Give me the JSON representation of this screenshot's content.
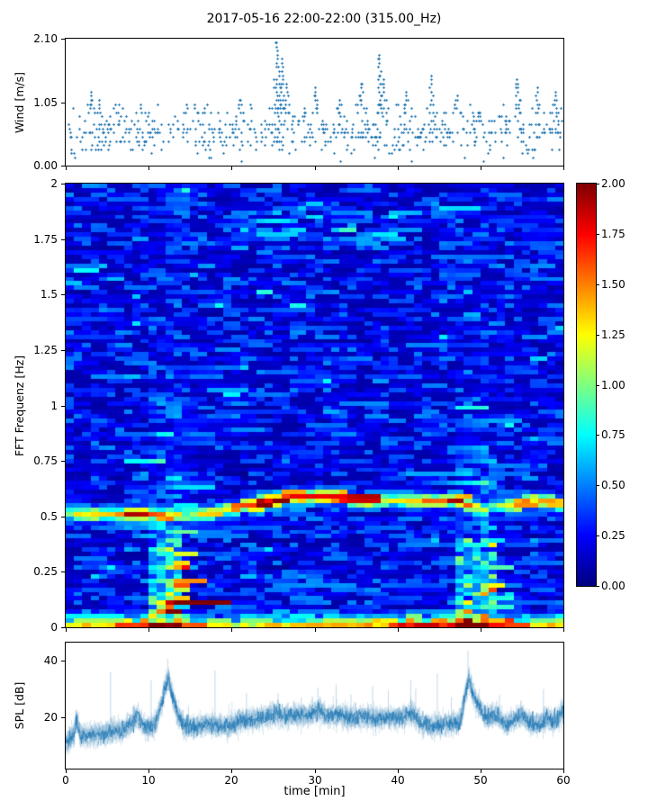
{
  "title": "2017-05-16 22:00-22:00 (315.00_Hz)",
  "chart_data": [
    {
      "type": "scatter",
      "name": "wind",
      "ylabel": "Wind [m/s]",
      "ylim": [
        0,
        2.1
      ],
      "ytick_labels": [
        "0.00",
        "1.05",
        "2.10"
      ],
      "ytick_values": [
        0,
        1.05,
        2.1
      ],
      "xlim": [
        0,
        60
      ],
      "xtick_values": [
        0,
        10,
        20,
        30,
        40,
        50,
        60
      ],
      "marker_color": "#1f77b4",
      "seed": 7,
      "n_points": 640,
      "base_mean": 0.58,
      "base_sigma": 0.17,
      "quantize_step": 0.068,
      "bursts": [
        [
          3,
          1.2
        ],
        [
          4,
          1.1
        ],
        [
          6,
          1.05
        ],
        [
          9,
          1.0
        ],
        [
          14.5,
          1.05
        ],
        [
          15.5,
          1.0
        ],
        [
          17,
          1.05
        ],
        [
          21,
          1.1
        ],
        [
          25.4,
          2.06
        ],
        [
          26,
          1.75
        ],
        [
          26.6,
          1.35
        ],
        [
          30,
          1.3
        ],
        [
          33,
          1.1
        ],
        [
          35.6,
          1.35
        ],
        [
          37.8,
          1.85
        ],
        [
          38.3,
          1.45
        ],
        [
          41,
          1.2
        ],
        [
          44,
          1.5
        ],
        [
          47.2,
          1.15
        ],
        [
          54.4,
          1.45
        ],
        [
          56.8,
          1.3
        ],
        [
          59,
          1.2
        ]
      ]
    },
    {
      "type": "heatmap",
      "name": "spectrogram",
      "ylabel": "FFT Frequenz [Hz]",
      "ylim": [
        0,
        2
      ],
      "ytick_labels": [
        "0",
        "0.25",
        "0.5",
        "0.75",
        "1",
        "1.25",
        "1.5",
        "1.75",
        "2"
      ],
      "ytick_values": [
        0,
        0.25,
        0.5,
        0.75,
        1,
        1.25,
        1.5,
        1.75,
        2
      ],
      "xlim": [
        0,
        60
      ],
      "colormap": "jet",
      "clim": [
        0,
        2
      ],
      "colorbar_tick_labels": [
        "0.00",
        "0.25",
        "0.50",
        "0.75",
        "1.00",
        "1.25",
        "1.50",
        "1.75",
        "2.00"
      ],
      "colorbar_tick_values": [
        0,
        0.25,
        0.5,
        0.75,
        1,
        1.25,
        1.5,
        1.75,
        2
      ],
      "time_bins": 60,
      "freq_bins": 100,
      "seed": 13,
      "noise_base": 0.08,
      "noise_amp": 0.45,
      "band_center": [
        [
          0,
          0.505
        ],
        [
          5,
          0.505
        ],
        [
          10,
          0.505
        ],
        [
          13,
          0.5
        ],
        [
          16,
          0.51
        ],
        [
          19,
          0.525
        ],
        [
          22,
          0.55
        ],
        [
          25,
          0.57
        ],
        [
          28,
          0.595
        ],
        [
          31,
          0.585
        ],
        [
          34,
          0.58
        ],
        [
          37,
          0.57
        ],
        [
          40,
          0.565
        ],
        [
          43,
          0.57
        ],
        [
          46,
          0.57
        ],
        [
          48,
          0.565
        ],
        [
          50,
          0.53
        ],
        [
          52,
          0.55
        ],
        [
          55,
          0.56
        ],
        [
          58,
          0.565
        ],
        [
          60,
          0.555
        ]
      ],
      "band_intensity": [
        [
          0,
          1.1
        ],
        [
          3,
          1.4
        ],
        [
          6,
          1.6
        ],
        [
          8,
          1.9
        ],
        [
          10,
          1.9
        ],
        [
          12,
          1.4
        ],
        [
          14,
          0.8
        ],
        [
          16,
          1.3
        ],
        [
          18,
          1.2
        ],
        [
          20,
          1.5
        ],
        [
          22,
          1.7
        ],
        [
          24,
          2.0
        ],
        [
          26,
          2.0
        ],
        [
          28,
          2.0
        ],
        [
          30,
          1.8
        ],
        [
          32,
          1.7
        ],
        [
          34,
          1.9
        ],
        [
          36,
          1.8
        ],
        [
          38,
          1.4
        ],
        [
          40,
          1.2
        ],
        [
          42,
          1.5
        ],
        [
          44,
          1.7
        ],
        [
          46,
          1.8
        ],
        [
          47.5,
          1.9
        ],
        [
          49,
          1.4
        ],
        [
          51,
          0.9
        ],
        [
          53,
          1.3
        ],
        [
          55,
          1.6
        ],
        [
          57,
          1.5
        ],
        [
          59,
          1.4
        ],
        [
          60,
          1.3
        ]
      ],
      "vertical_streaks": [
        {
          "t_range": [
            9.7,
            14.2
          ],
          "boost": 0.4
        },
        {
          "t_range": [
            47.3,
            52.0
          ],
          "boost": 0.35
        }
      ],
      "bottom_band_intensity": [
        [
          0,
          1.5
        ],
        [
          4,
          1.3
        ],
        [
          8,
          1.8
        ],
        [
          10,
          2.0
        ],
        [
          13,
          2.0
        ],
        [
          15,
          1.6
        ],
        [
          18,
          1.2
        ],
        [
          22,
          1.3
        ],
        [
          26,
          1.4
        ],
        [
          30,
          1.5
        ],
        [
          34,
          1.3
        ],
        [
          38,
          1.5
        ],
        [
          41,
          1.9
        ],
        [
          44,
          1.8
        ],
        [
          47,
          1.9
        ],
        [
          50,
          2.0
        ],
        [
          53,
          1.6
        ],
        [
          56,
          1.4
        ],
        [
          60,
          1.5
        ]
      ],
      "high_freq_wisps": {
        "f_range": [
          1.7,
          1.88
        ],
        "t_range": [
          20,
          40
        ],
        "amp": 0.3
      }
    },
    {
      "type": "line",
      "name": "spl",
      "ylabel": "SPL [dB]",
      "xlabel": "time [min]",
      "ylim": [
        1.9,
        46.3
      ],
      "ytick_labels": [
        "20",
        "40"
      ],
      "ytick_values": [
        20,
        40
      ],
      "xtick_labels": [
        "0",
        "10",
        "20",
        "30",
        "40",
        "50",
        "60"
      ],
      "xtick_values": [
        0,
        10,
        20,
        30,
        40,
        50,
        60
      ],
      "line_color": "#1f77b4",
      "seed": 21,
      "envelope": [
        [
          0,
          10.5
        ],
        [
          0.5,
          12
        ],
        [
          1,
          14
        ],
        [
          1.3,
          19
        ],
        [
          1.8,
          13.5
        ],
        [
          3,
          14
        ],
        [
          5,
          14.5
        ],
        [
          7,
          15.5
        ],
        [
          8,
          18.5
        ],
        [
          8.6,
          20.5
        ],
        [
          9.3,
          17
        ],
        [
          10,
          16
        ],
        [
          10.8,
          17.5
        ],
        [
          11.5,
          24
        ],
        [
          12,
          31
        ],
        [
          12.4,
          33.5
        ],
        [
          12.9,
          27
        ],
        [
          13.5,
          21
        ],
        [
          14.3,
          17
        ],
        [
          15.5,
          16.5
        ],
        [
          17,
          17.5
        ],
        [
          18.5,
          17
        ],
        [
          20,
          17
        ],
        [
          21,
          19
        ],
        [
          22.5,
          19
        ],
        [
          24,
          20
        ],
        [
          25.5,
          21.5
        ],
        [
          26.5,
          20
        ],
        [
          28,
          21
        ],
        [
          29,
          20.5
        ],
        [
          30.5,
          22.5
        ],
        [
          31.5,
          20.5
        ],
        [
          33,
          21
        ],
        [
          34.5,
          19.5
        ],
        [
          36,
          20.5
        ],
        [
          37.5,
          19.5
        ],
        [
          39,
          20
        ],
        [
          40.5,
          20
        ],
        [
          41.8,
          21.5
        ],
        [
          43,
          17.5
        ],
        [
          44.5,
          17
        ],
        [
          46,
          17.5
        ],
        [
          47.5,
          18
        ],
        [
          48.2,
          28
        ],
        [
          48.6,
          34
        ],
        [
          49.2,
          27
        ],
        [
          50,
          23
        ],
        [
          50.8,
          19.5
        ],
        [
          52,
          21
        ],
        [
          53,
          17.5
        ],
        [
          54.2,
          19.5
        ],
        [
          55,
          21
        ],
        [
          56,
          17.5
        ],
        [
          57.2,
          17.5
        ],
        [
          58,
          19.5
        ],
        [
          58.8,
          18
        ],
        [
          59.5,
          20
        ],
        [
          60,
          23
        ]
      ],
      "spikes": [
        [
          1.2,
          20.5
        ],
        [
          5.4,
          36
        ],
        [
          10.3,
          33
        ],
        [
          12.3,
          40.5
        ],
        [
          14.8,
          24
        ],
        [
          18,
          36.5
        ],
        [
          21.8,
          28.5
        ],
        [
          25.6,
          28.5
        ],
        [
          28.4,
          27
        ],
        [
          30.4,
          30.5
        ],
        [
          32.6,
          31.5
        ],
        [
          34.4,
          28
        ],
        [
          37,
          31
        ],
        [
          38.9,
          29.5
        ],
        [
          41.6,
          33
        ],
        [
          42.2,
          30
        ],
        [
          44.8,
          35.5
        ],
        [
          46.5,
          27
        ],
        [
          48.5,
          43.5
        ],
        [
          52.3,
          28
        ],
        [
          54.9,
          26
        ],
        [
          57.6,
          30
        ],
        [
          59.8,
          27
        ]
      ]
    }
  ]
}
